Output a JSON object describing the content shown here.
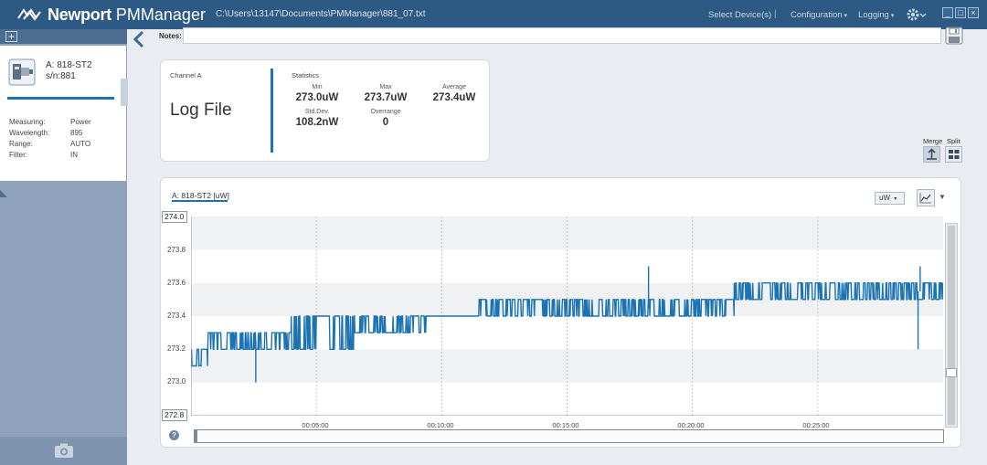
{
  "app": {
    "brand": "Newport",
    "name": "PMManager",
    "file_path": "C:\\Users\\13147\\Documents\\PMManager\\881_07.txt"
  },
  "menu": {
    "select_devices": "Select Device(s)",
    "separator": "|",
    "configuration": "Configuration",
    "logging": "Logging",
    "caret": "▾"
  },
  "window_controls": {
    "minimize": "_",
    "maximize": "□",
    "close": "×"
  },
  "sidebar": {
    "add_symbol": "+",
    "device": {
      "name": "A: 818-ST2",
      "serial": "s/n:881",
      "properties": [
        {
          "label": "Measuring:",
          "value": "Power"
        },
        {
          "label": "Wavelength:",
          "value": "895"
        },
        {
          "label": "Range:",
          "value": "AUTO"
        },
        {
          "label": "Filter:",
          "value": "IN"
        }
      ]
    }
  },
  "notes": {
    "label": "Notes:",
    "value": ""
  },
  "channel": {
    "label": "Channel A",
    "mode": "Log File",
    "statistics_title": "Statistics",
    "stats": {
      "min": {
        "label": "Min",
        "value": "273.0uW"
      },
      "max": {
        "label": "Max",
        "value": "273.7uW"
      },
      "average": {
        "label": "Average",
        "value": "273.4uW"
      },
      "std_dev": {
        "label": "Std.Dev.",
        "value": "108.2nW"
      },
      "overrange": {
        "label": "Overrange",
        "value": "0"
      }
    }
  },
  "view": {
    "merge": "Merge",
    "split": "Split",
    "active": "merge"
  },
  "chart": {
    "series_tab": "A: 818-ST2 [uW]",
    "unit": "uW",
    "help": "?"
  },
  "chart_data": {
    "type": "line",
    "series": [
      {
        "name": "A: 818-ST2 [uW]",
        "color": "#1b73b3",
        "note": "dense log trace oscillating between adjacent 0.1 uW levels",
        "segments": [
          {
            "t_start": 0,
            "t_end": 40,
            "low": 273.1,
            "high": 273.2
          },
          {
            "t_start": 40,
            "t_end": 240,
            "low": 273.2,
            "high": 273.3
          },
          {
            "t_start": 240,
            "t_end": 390,
            "low": 273.2,
            "high": 273.4
          },
          {
            "t_start": 390,
            "t_end": 570,
            "low": 273.3,
            "high": 273.4
          },
          {
            "t_start": 570,
            "t_end": 680,
            "low": 273.4,
            "high": 273.4
          },
          {
            "t_start": 680,
            "t_end": 900,
            "low": 273.4,
            "high": 273.5
          },
          {
            "t_start": 900,
            "t_end": 1300,
            "low": 273.4,
            "high": 273.5
          },
          {
            "t_start": 1300,
            "t_end": 1800,
            "low": 273.5,
            "high": 273.6
          }
        ],
        "spikes": [
          {
            "t": 155,
            "value": 273.0
          },
          {
            "t": 1740,
            "value": 273.2
          },
          {
            "t": 1095,
            "value": 273.7
          },
          {
            "t": 1745,
            "value": 273.7
          }
        ]
      }
    ],
    "x_ticks": [
      "00:05:00",
      "00:10:00",
      "00:15:00",
      "00:20:00",
      "00:25:00"
    ],
    "x_tick_seconds": [
      300,
      600,
      900,
      1200,
      1500
    ],
    "xlim_seconds": [
      0,
      1800
    ],
    "y_ticks": [
      "274.0",
      "273.8",
      "273.6",
      "273.4",
      "273.2",
      "273.0",
      "272.8"
    ],
    "ylim": [
      272.8,
      274.0
    ],
    "y_top_label": "274.0",
    "y_bottom_label": "272.8",
    "grid": true,
    "banded_background": true
  }
}
